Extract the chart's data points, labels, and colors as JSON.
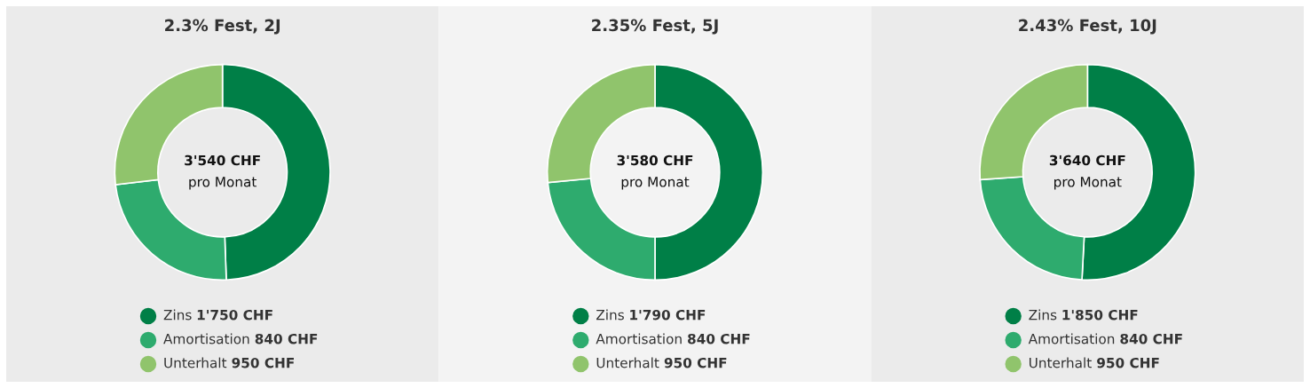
{
  "chart_data": [
    {
      "type": "donut",
      "title": "2.3% Fest, 2J",
      "categories": [
        "Zins",
        "Amortisation",
        "Unterhalt"
      ],
      "values": [
        1750,
        840,
        950
      ],
      "value_labels": [
        "1'750 CHF",
        "840 CHF",
        "950 CHF"
      ],
      "colors": [
        "#007f47",
        "#2eab6e",
        "#90c46c"
      ],
      "annotations": [
        "3'540 CHF",
        "pro Monat"
      ],
      "legend": "bottom"
    },
    {
      "type": "donut",
      "title": "2.35% Fest, 5J",
      "categories": [
        "Zins",
        "Amortisation",
        "Unterhalt"
      ],
      "values": [
        1790,
        840,
        950
      ],
      "value_labels": [
        "1'790 CHF",
        "840 CHF",
        "950 CHF"
      ],
      "colors": [
        "#007f47",
        "#2eab6e",
        "#90c46c"
      ],
      "annotations": [
        "3'580 CHF",
        "pro Monat"
      ],
      "legend": "bottom"
    },
    {
      "type": "donut",
      "title": "2.43% Fest, 10J",
      "categories": [
        "Zins",
        "Amortisation",
        "Unterhalt"
      ],
      "values": [
        1850,
        840,
        950
      ],
      "value_labels": [
        "1'850 CHF",
        "840 CHF",
        "950 CHF"
      ],
      "colors": [
        "#007f47",
        "#2eab6e",
        "#90c46c"
      ],
      "annotations": [
        "3'640 CHF",
        "pro Monat"
      ],
      "legend": "bottom"
    }
  ]
}
